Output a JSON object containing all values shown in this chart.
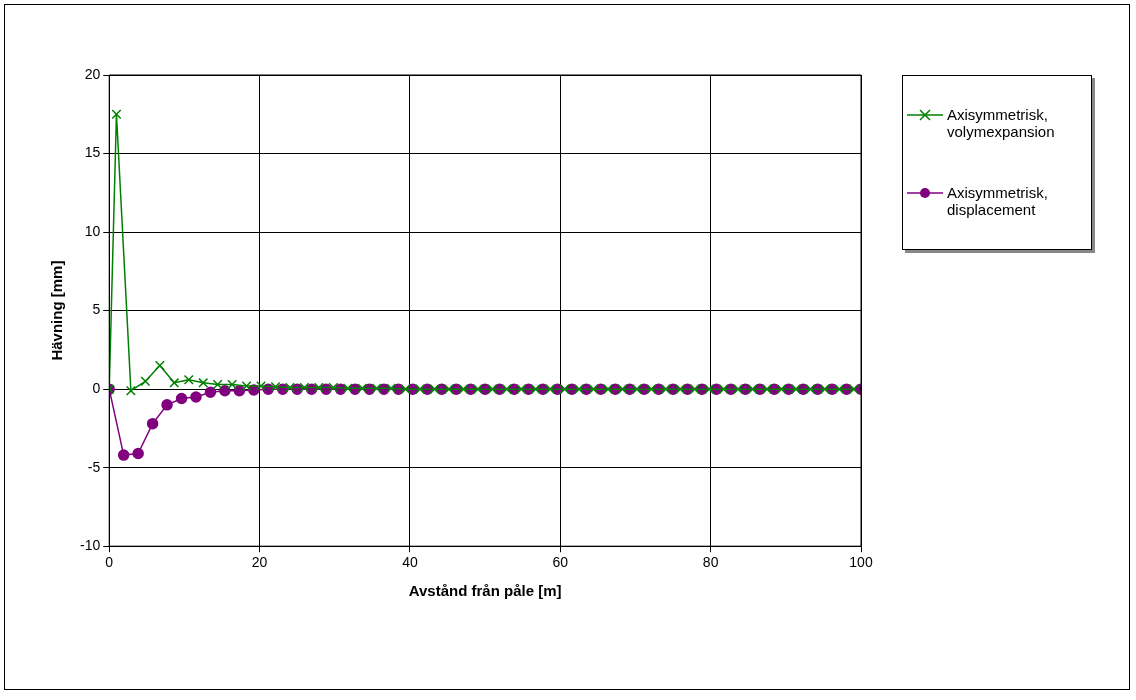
{
  "chart_data": {
    "type": "line",
    "xlabel": "Avstånd från påle [m]",
    "ylabel": "Hävning [mm]",
    "xlim": [
      0,
      100
    ],
    "xticks": [
      0,
      20,
      40,
      60,
      80,
      100
    ],
    "ylim": [
      -10,
      20
    ],
    "yticks": [
      -10,
      -5,
      0,
      5,
      10,
      15,
      20
    ],
    "grid": true,
    "legend": "top right",
    "line_style": "solid",
    "series": [
      {
        "name": "Axisymmetrisk, volymexpansion",
        "color": "#008000",
        "marker": "cross",
        "x": [
          0,
          0.96,
          2.88,
          4.81,
          6.73,
          8.65,
          10.58,
          12.5,
          14.42,
          16.35,
          18.27,
          20.19,
          22.12,
          24.04,
          25.96,
          27.88,
          29.81,
          31.73,
          33.65,
          35.58,
          37.5,
          39.42,
          41.35,
          43.27,
          45.19,
          47.12,
          49.04,
          50.96,
          52.88,
          54.81,
          56.73,
          58.65,
          60.58,
          62.5,
          64.42,
          66.35,
          68.27,
          70.19,
          72.12,
          74.04,
          75.96,
          77.88,
          79.81,
          81.73,
          83.65,
          85.58,
          87.5,
          89.42,
          91.35,
          93.27,
          95.19,
          97.12,
          99.04
        ],
        "values": [
          0,
          17.5,
          -0.1,
          0.5,
          1.5,
          0.4,
          0.6,
          0.4,
          0.3,
          0.3,
          0.2,
          0.2,
          0.15,
          0.1,
          0.1,
          0.1,
          0.1,
          0.05,
          0.05,
          0.05,
          0.05,
          0,
          0,
          0,
          0,
          0,
          0,
          0,
          0,
          0,
          0,
          0,
          0,
          0,
          0,
          0,
          0,
          0,
          0,
          0,
          0,
          0,
          0,
          0,
          0,
          0,
          0,
          0,
          0,
          0,
          0,
          0,
          0
        ]
      },
      {
        "name": "Axisymmetrisk, displacement",
        "color": "#800080",
        "marker": "circle",
        "x": [
          0,
          1.92,
          3.85,
          5.77,
          7.69,
          9.62,
          11.54,
          13.46,
          15.38,
          17.31,
          19.23,
          21.15,
          23.08,
          25,
          26.92,
          28.85,
          30.77,
          32.69,
          34.62,
          36.54,
          38.46,
          40.38,
          42.31,
          44.23,
          46.15,
          48.08,
          50,
          51.92,
          53.85,
          55.77,
          57.69,
          59.62,
          61.54,
          63.46,
          65.38,
          67.31,
          69.23,
          71.15,
          73.08,
          75,
          76.92,
          78.85,
          80.77,
          82.69,
          84.62,
          86.54,
          88.46,
          90.38,
          92.31,
          94.23,
          96.15,
          98.08,
          100
        ],
        "values": [
          0,
          -4.2,
          -4.1,
          -2.2,
          -1,
          -0.6,
          -0.5,
          -0.2,
          -0.1,
          -0.1,
          -0.05,
          0,
          0,
          0,
          0,
          0,
          0,
          0,
          0,
          0,
          0,
          0,
          0,
          0,
          0,
          0,
          0,
          0,
          0,
          0,
          0,
          0,
          0,
          0,
          0,
          0,
          0,
          0,
          0,
          0,
          0,
          0,
          0,
          0,
          0,
          0,
          0,
          0,
          0,
          0,
          0,
          0,
          0
        ]
      }
    ]
  }
}
